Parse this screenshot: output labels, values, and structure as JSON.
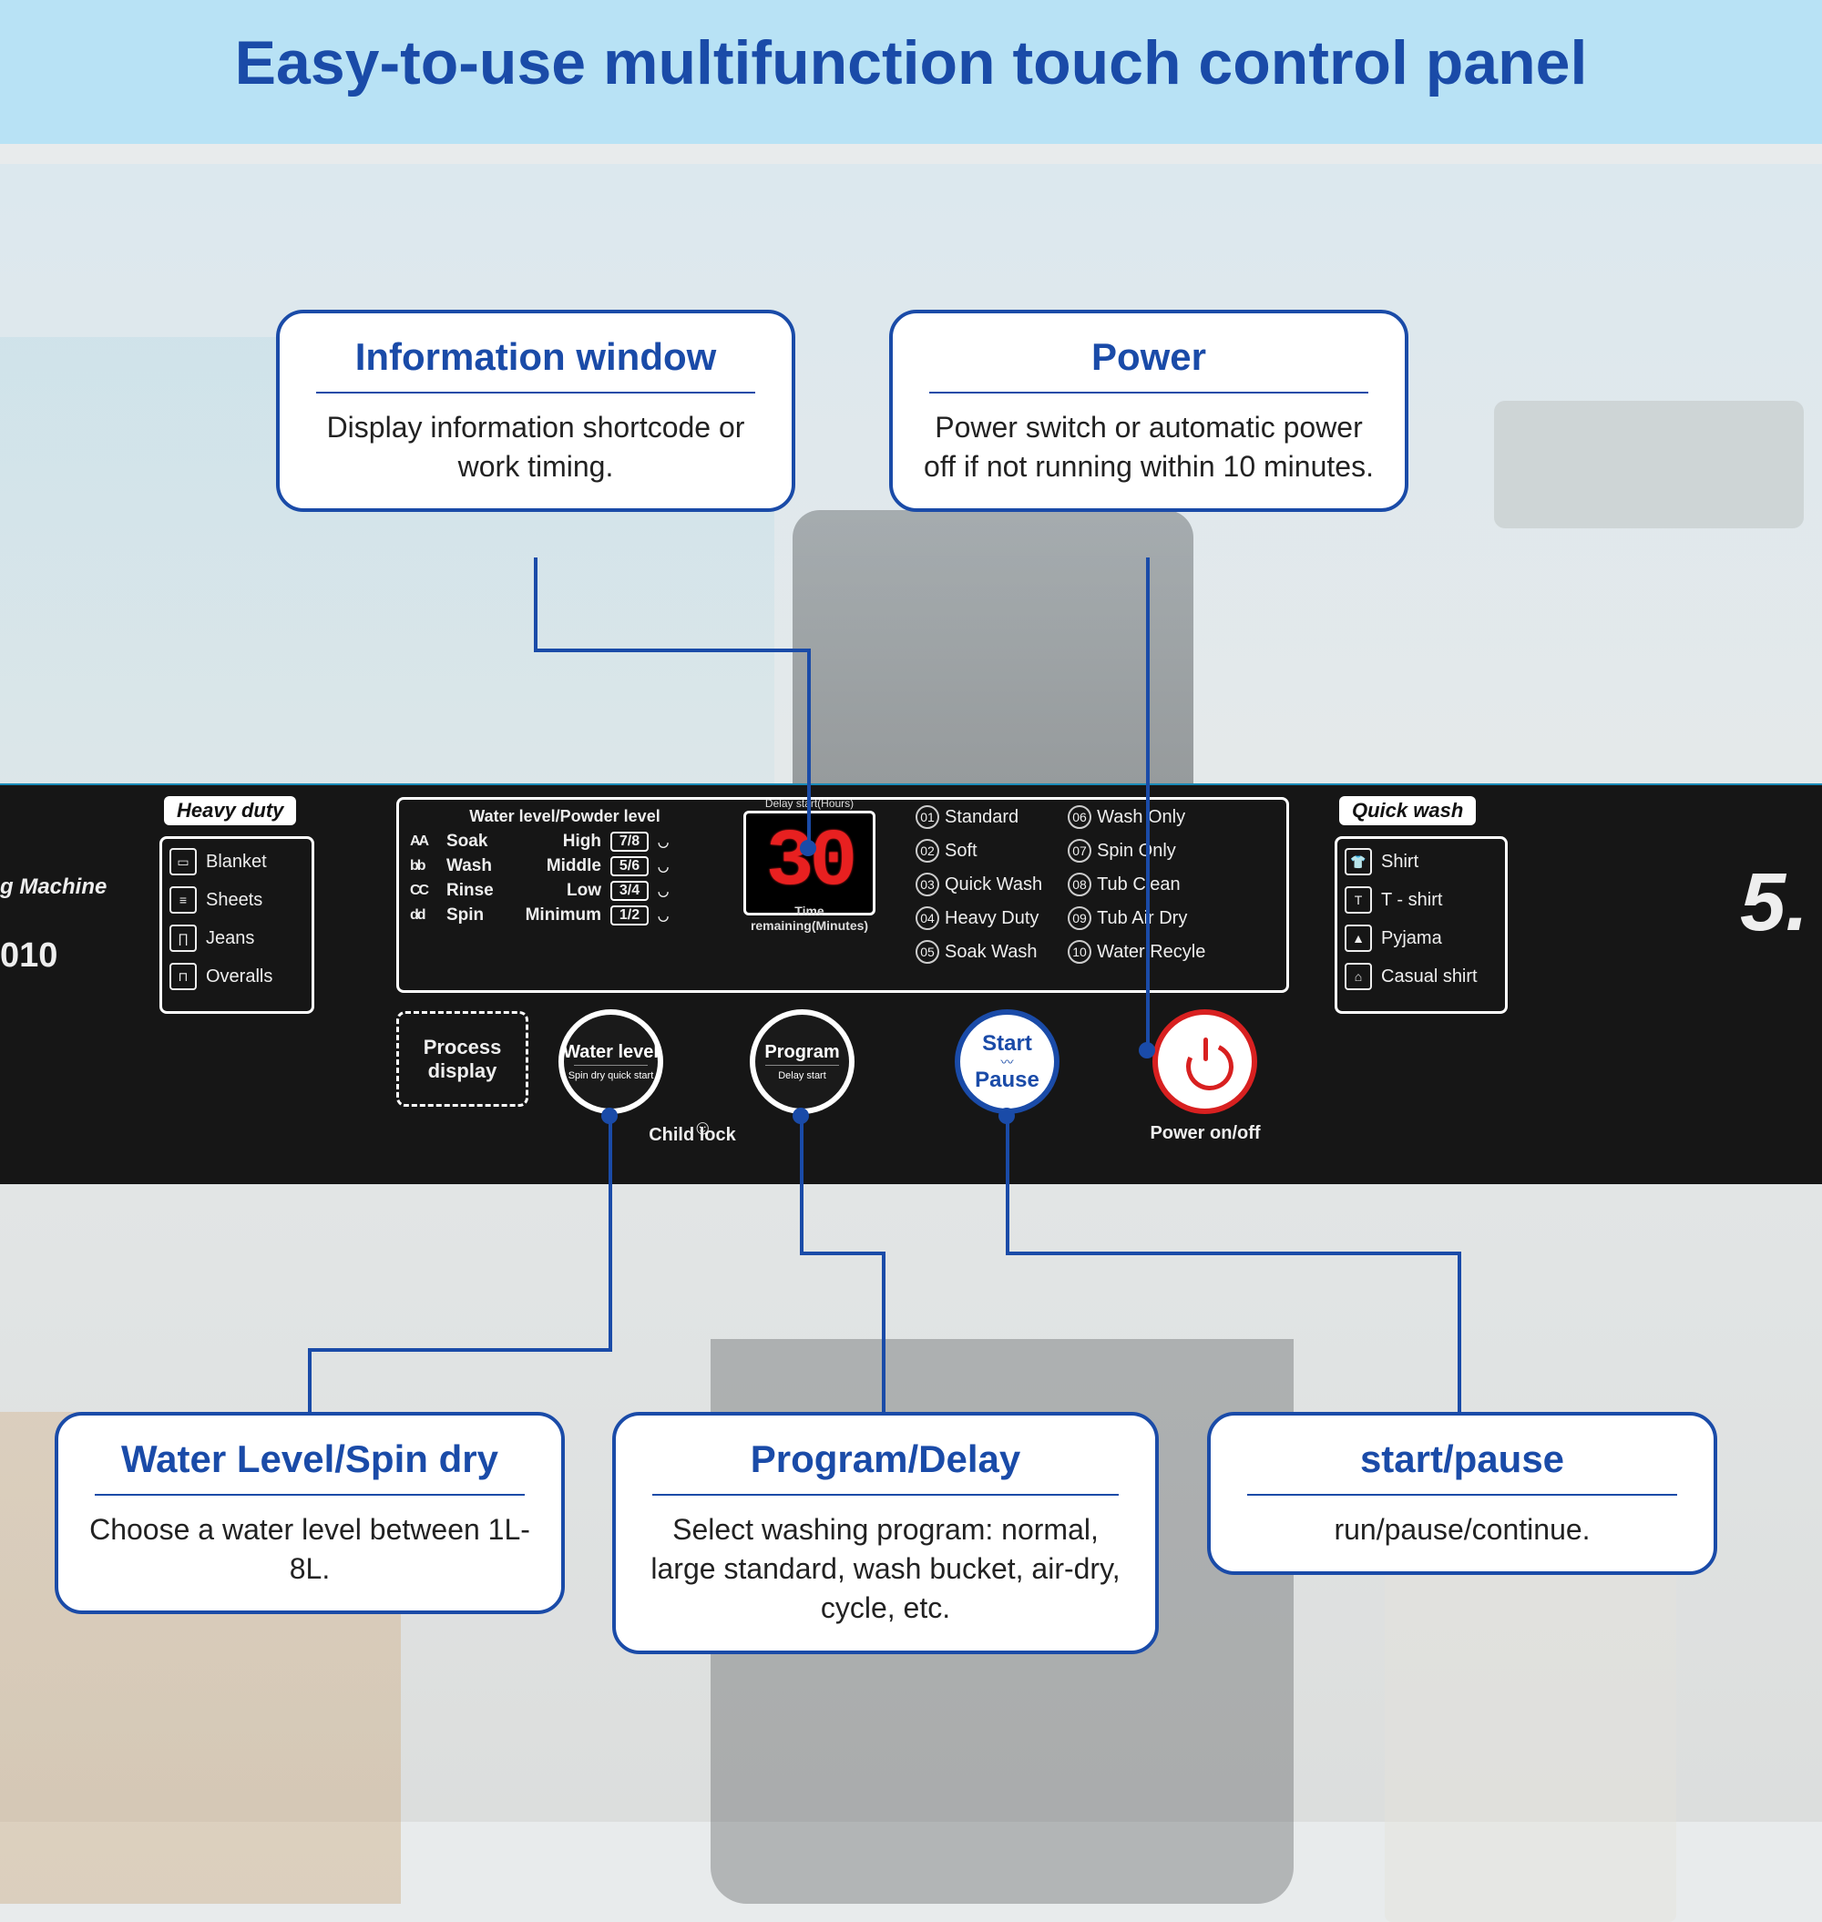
{
  "header": {
    "title": "Easy-to-use multifunction touch control panel",
    "bg_color": "#b8e2f5",
    "text_color": "#1a4ba8"
  },
  "side_labels": {
    "machine": "g Machine",
    "model": "010",
    "capacity": "5."
  },
  "heavy_duty": {
    "label": "Heavy duty",
    "items": [
      "Blanket",
      "Sheets",
      "Jeans",
      "Overalls"
    ]
  },
  "quick_wash": {
    "label": "Quick wash",
    "items": [
      "Shirt",
      "T - shirt",
      "Pyjama",
      "Casual shirt"
    ]
  },
  "display": {
    "header": "Water level/Powder level",
    "led_top": "Delay start(Hours)",
    "led_value": "30",
    "led_bottom": "Time remaining(Minutes)",
    "rows": [
      {
        "icon": "AA",
        "name": "Soak",
        "level": "High",
        "box": "7/8"
      },
      {
        "icon": "bb",
        "name": "Wash",
        "level": "Middle",
        "box": "5/6"
      },
      {
        "icon": "CC",
        "name": "Rinse",
        "level": "Low",
        "box": "3/4"
      },
      {
        "icon": "dd",
        "name": "Spin",
        "level": "Minimum",
        "box": "1/2"
      }
    ]
  },
  "programs": {
    "col1": [
      {
        "num": "01",
        "name": "Standard"
      },
      {
        "num": "02",
        "name": "Soft"
      },
      {
        "num": "03",
        "name": "Quick Wash"
      },
      {
        "num": "04",
        "name": "Heavy Duty"
      },
      {
        "num": "05",
        "name": "Soak Wash"
      }
    ],
    "col2": [
      {
        "num": "06",
        "name": "Wash Only"
      },
      {
        "num": "07",
        "name": "Spin Only"
      },
      {
        "num": "08",
        "name": "Tub Clean"
      },
      {
        "num": "09",
        "name": "Tub Air Dry"
      },
      {
        "num": "10",
        "name": "Water Recyle"
      }
    ]
  },
  "buttons": {
    "process": "Process display",
    "water_main": "Water level",
    "water_sub": "Spin dry quick start",
    "program_main": "Program",
    "program_sub": "Delay start",
    "start": "Start",
    "pause": "Pause",
    "child_lock": "Child lock",
    "power_caption": "Power on/off"
  },
  "callouts": {
    "info": {
      "title": "Information window",
      "body": "Display information shortcode or work timing."
    },
    "power": {
      "title": "Power",
      "body": "Power switch or automatic power off if not running within 10 minutes."
    },
    "water": {
      "title": "Water Level/Spin dry",
      "body": "Choose a water level between 1L-8L."
    },
    "program": {
      "title": "Program/Delay",
      "body": "Select washing program: normal, large standard, wash bucket, air-dry, cycle, etc."
    },
    "start": {
      "title": "start/pause",
      "body": "run/pause/continue."
    }
  },
  "colors": {
    "accent_blue": "#1a4ba8",
    "led_red": "#e82020",
    "power_red": "#d82020",
    "panel_bg": "#161616"
  }
}
